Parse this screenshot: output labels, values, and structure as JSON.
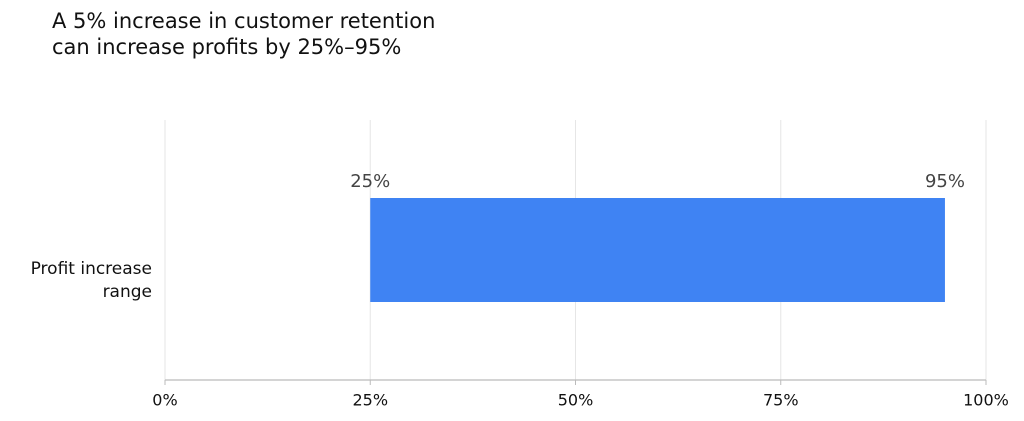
{
  "chart_data": {
    "type": "range-bar",
    "title": "A 5% increase in customer retention\ncan increase profits by 25%–95%",
    "categories": [
      "Profit increase\nrange"
    ],
    "starts": [
      25
    ],
    "ends": [
      95
    ],
    "start_labels": [
      "25%"
    ],
    "end_labels": [
      "95%"
    ],
    "color": "#3f83f3",
    "xlim": [
      0,
      100
    ],
    "xticks": [
      {
        "value": 0,
        "label": "0%"
      },
      {
        "value": 25,
        "label": "25%"
      },
      {
        "value": 50,
        "label": "50%"
      },
      {
        "value": 75,
        "label": "75%"
      },
      {
        "value": 100,
        "label": "100%"
      }
    ],
    "grid": true
  }
}
